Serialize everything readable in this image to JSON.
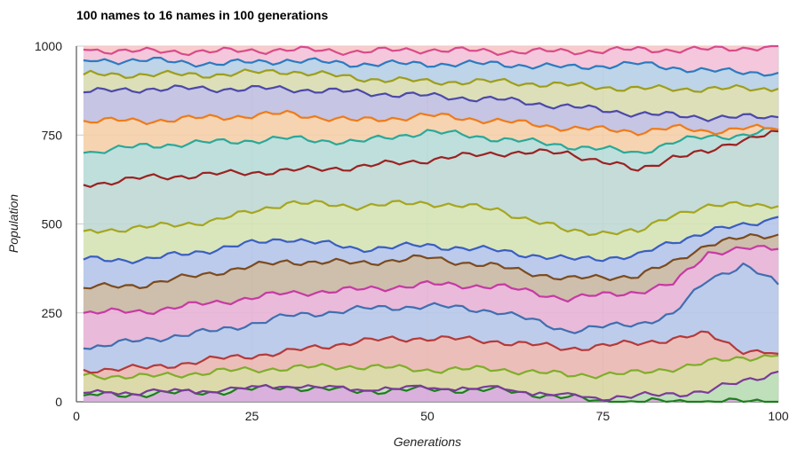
{
  "chart_data": {
    "type": "area",
    "stacked": true,
    "title": "100 names to 16 names in 100 generations",
    "xlabel": "Generations",
    "ylabel": "Population",
    "xlim": [
      0,
      100
    ],
    "ylim": [
      0,
      1000
    ],
    "xticks": [
      "0",
      "25",
      "50",
      "75",
      "100"
    ],
    "yticks": [
      "0",
      "250",
      "500",
      "750",
      "1000"
    ],
    "grid": true,
    "legend": "none",
    "x_start": 1,
    "x_end": 100,
    "boundaries": [
      {
        "name": "b1",
        "color": "#1e7d1e",
        "values": [
          [
            1,
            18
          ],
          [
            10,
            22
          ],
          [
            20,
            28
          ],
          [
            30,
            42
          ],
          [
            40,
            30
          ],
          [
            50,
            35
          ],
          [
            60,
            33
          ],
          [
            72,
            8
          ],
          [
            75,
            0
          ],
          [
            100,
            0
          ]
        ]
      },
      {
        "name": "b2",
        "color": "#7a3b99",
        "values": [
          [
            1,
            25
          ],
          [
            10,
            26
          ],
          [
            20,
            30
          ],
          [
            30,
            42
          ],
          [
            40,
            33
          ],
          [
            50,
            37
          ],
          [
            60,
            34
          ],
          [
            72,
            10
          ],
          [
            80,
            15
          ],
          [
            90,
            30
          ],
          [
            95,
            58
          ],
          [
            100,
            85
          ]
        ]
      },
      {
        "name": "b3",
        "color": "#7fae2a",
        "values": [
          [
            1,
            75
          ],
          [
            10,
            70
          ],
          [
            20,
            85
          ],
          [
            30,
            95
          ],
          [
            40,
            100
          ],
          [
            50,
            90
          ],
          [
            60,
            92
          ],
          [
            70,
            75
          ],
          [
            80,
            80
          ],
          [
            90,
            110
          ],
          [
            95,
            125
          ],
          [
            100,
            130
          ]
        ]
      },
      {
        "name": "b4",
        "color": "#b43a3a",
        "values": [
          [
            1,
            90
          ],
          [
            10,
            95
          ],
          [
            20,
            120
          ],
          [
            30,
            140
          ],
          [
            40,
            170
          ],
          [
            50,
            180
          ],
          [
            60,
            170
          ],
          [
            70,
            150
          ],
          [
            80,
            165
          ],
          [
            90,
            190
          ],
          [
            95,
            145
          ],
          [
            100,
            135
          ]
        ]
      },
      {
        "name": "b5",
        "color": "#3f6fb0",
        "values": [
          [
            1,
            150
          ],
          [
            10,
            175
          ],
          [
            20,
            200
          ],
          [
            30,
            240
          ],
          [
            40,
            260
          ],
          [
            50,
            270
          ],
          [
            60,
            255
          ],
          [
            70,
            200
          ],
          [
            80,
            220
          ],
          [
            85,
            245
          ],
          [
            90,
            345
          ],
          [
            95,
            385
          ],
          [
            100,
            330
          ]
        ]
      },
      {
        "name": "b6",
        "color": "#c63aa3",
        "values": [
          [
            1,
            250
          ],
          [
            10,
            255
          ],
          [
            20,
            280
          ],
          [
            30,
            305
          ],
          [
            40,
            315
          ],
          [
            50,
            330
          ],
          [
            60,
            325
          ],
          [
            70,
            290
          ],
          [
            80,
            310
          ],
          [
            85,
            330
          ],
          [
            90,
            420
          ],
          [
            95,
            430
          ],
          [
            100,
            430
          ]
        ]
      },
      {
        "name": "b7",
        "color": "#7b4b1e",
        "values": [
          [
            1,
            320
          ],
          [
            10,
            330
          ],
          [
            20,
            365
          ],
          [
            30,
            395
          ],
          [
            40,
            390
          ],
          [
            50,
            405
          ],
          [
            60,
            380
          ],
          [
            70,
            345
          ],
          [
            80,
            355
          ],
          [
            85,
            390
          ],
          [
            90,
            445
          ],
          [
            95,
            460
          ],
          [
            100,
            470
          ]
        ]
      },
      {
        "name": "b8",
        "color": "#3a5ec1",
        "values": [
          [
            1,
            400
          ],
          [
            10,
            400
          ],
          [
            20,
            430
          ],
          [
            30,
            460
          ],
          [
            40,
            430
          ],
          [
            50,
            440
          ],
          [
            60,
            425
          ],
          [
            70,
            400
          ],
          [
            80,
            410
          ],
          [
            85,
            450
          ],
          [
            90,
            480
          ],
          [
            95,
            495
          ],
          [
            100,
            520
          ]
        ]
      },
      {
        "name": "b9",
        "color": "#a6a61e",
        "values": [
          [
            1,
            480
          ],
          [
            10,
            490
          ],
          [
            20,
            510
          ],
          [
            30,
            560
          ],
          [
            40,
            550
          ],
          [
            50,
            560
          ],
          [
            60,
            540
          ],
          [
            70,
            480
          ],
          [
            80,
            475
          ],
          [
            85,
            530
          ],
          [
            90,
            545
          ],
          [
            95,
            560
          ],
          [
            100,
            550
          ]
        ]
      },
      {
        "name": "b10",
        "color": "#9b2222",
        "values": [
          [
            1,
            610
          ],
          [
            10,
            630
          ],
          [
            20,
            640
          ],
          [
            30,
            650
          ],
          [
            40,
            660
          ],
          [
            50,
            680
          ],
          [
            60,
            700
          ],
          [
            70,
            700
          ],
          [
            80,
            650
          ],
          [
            85,
            690
          ],
          [
            90,
            700
          ],
          [
            95,
            740
          ],
          [
            100,
            760
          ]
        ]
      },
      {
        "name": "b11",
        "color": "#2aa89a",
        "values": [
          [
            1,
            700
          ],
          [
            10,
            720
          ],
          [
            20,
            730
          ],
          [
            30,
            740
          ],
          [
            40,
            730
          ],
          [
            50,
            760
          ],
          [
            60,
            740
          ],
          [
            70,
            720
          ],
          [
            80,
            700
          ],
          [
            85,
            730
          ],
          [
            90,
            745
          ],
          [
            95,
            750
          ],
          [
            100,
            765
          ]
        ]
      },
      {
        "name": "b12",
        "color": "#ef7b1a",
        "values": [
          [
            1,
            790
          ],
          [
            10,
            790
          ],
          [
            20,
            800
          ],
          [
            30,
            810
          ],
          [
            40,
            790
          ],
          [
            50,
            805
          ],
          [
            60,
            790
          ],
          [
            70,
            770
          ],
          [
            80,
            760
          ],
          [
            85,
            770
          ],
          [
            90,
            760
          ],
          [
            95,
            770
          ],
          [
            100,
            765
          ]
        ]
      },
      {
        "name": "b13",
        "color": "#4b49a8",
        "values": [
          [
            1,
            870
          ],
          [
            10,
            880
          ],
          [
            20,
            880
          ],
          [
            30,
            880
          ],
          [
            40,
            870
          ],
          [
            50,
            860
          ],
          [
            60,
            850
          ],
          [
            70,
            830
          ],
          [
            80,
            810
          ],
          [
            90,
            800
          ],
          [
            100,
            800
          ]
        ]
      },
      {
        "name": "b14",
        "color": "#9e9e1a",
        "values": [
          [
            1,
            920
          ],
          [
            10,
            920
          ],
          [
            20,
            920
          ],
          [
            30,
            930
          ],
          [
            40,
            910
          ],
          [
            50,
            900
          ],
          [
            60,
            900
          ],
          [
            70,
            890
          ],
          [
            80,
            880
          ],
          [
            90,
            880
          ],
          [
            100,
            880
          ]
        ]
      },
      {
        "name": "b15",
        "color": "#2b7bbf",
        "values": [
          [
            1,
            960
          ],
          [
            10,
            960
          ],
          [
            20,
            950
          ],
          [
            30,
            960
          ],
          [
            40,
            950
          ],
          [
            50,
            950
          ],
          [
            60,
            950
          ],
          [
            70,
            940
          ],
          [
            80,
            950
          ],
          [
            90,
            930
          ],
          [
            100,
            925
          ]
        ]
      },
      {
        "name": "b16",
        "color": "#d94a8a",
        "values": [
          [
            1,
            990
          ],
          [
            10,
            985
          ],
          [
            20,
            985
          ],
          [
            30,
            990
          ],
          [
            40,
            985
          ],
          [
            50,
            990
          ],
          [
            60,
            985
          ],
          [
            70,
            985
          ],
          [
            80,
            990
          ],
          [
            90,
            990
          ],
          [
            100,
            1000
          ]
        ]
      }
    ]
  }
}
